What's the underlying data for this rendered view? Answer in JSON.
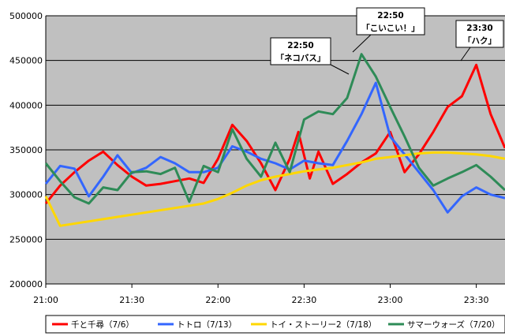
{
  "chart_data": {
    "type": "line",
    "ylim": [
      200000,
      500000
    ],
    "y_ticks": [
      "200000",
      "250000",
      "300000",
      "350000",
      "400000",
      "450000",
      "500000"
    ],
    "y_tick_values": [
      200000,
      250000,
      300000,
      350000,
      400000,
      450000,
      500000
    ],
    "x_ticks": [
      "21:00",
      "21:30",
      "22:00",
      "22:30",
      "23:00",
      "23:30"
    ],
    "x_tick_values": [
      0,
      30,
      60,
      90,
      120,
      150
    ],
    "x_range": [
      0,
      160
    ],
    "grid": "horizontal",
    "background": "#c0c0c0",
    "legend_position": "bottom",
    "series": [
      {
        "name": "千と千尋（7/6）",
        "color": "#ff0000",
        "x": [
          0,
          5,
          10,
          15,
          20,
          25,
          30,
          35,
          40,
          45,
          50,
          55,
          60,
          65,
          70,
          75,
          80,
          85,
          88,
          92,
          95,
          100,
          105,
          110,
          115,
          120,
          125,
          130,
          135,
          140,
          145,
          150,
          155,
          160
        ],
        "y": [
          290000,
          310000,
          325000,
          338000,
          348000,
          333000,
          320000,
          310000,
          312000,
          315000,
          318000,
          313000,
          340000,
          378000,
          360000,
          335000,
          305000,
          340000,
          370000,
          318000,
          348000,
          312000,
          323000,
          336000,
          346000,
          370000,
          325000,
          345000,
          370000,
          398000,
          410000,
          445000,
          390000,
          352000
        ]
      },
      {
        "name": "トトロ（7/13）",
        "color": "#3366ff",
        "x": [
          0,
          5,
          10,
          15,
          20,
          25,
          30,
          35,
          40,
          45,
          50,
          55,
          60,
          65,
          70,
          75,
          80,
          85,
          90,
          95,
          100,
          105,
          110,
          115,
          120,
          125,
          130,
          135,
          140,
          145,
          150,
          155,
          160
        ],
        "y": [
          312000,
          332000,
          329000,
          298000,
          320000,
          344000,
          324000,
          330000,
          342000,
          335000,
          325000,
          325000,
          330000,
          354000,
          348000,
          340000,
          335000,
          328000,
          338000,
          335000,
          333000,
          360000,
          390000,
          425000,
          365000,
          345000,
          325000,
          305000,
          280000,
          298000,
          308000,
          300000,
          296000
        ]
      },
      {
        "name": "トイ・ストーリー2（7/18）",
        "color": "#ffd700",
        "x": [
          0,
          5,
          15,
          25,
          35,
          45,
          55,
          60,
          65,
          70,
          75,
          80,
          85,
          90,
          95,
          100,
          105,
          110,
          115,
          120,
          125,
          130,
          135,
          140,
          145,
          150,
          155,
          160
        ],
        "y": [
          298000,
          265000,
          270000,
          275000,
          280000,
          285000,
          290000,
          295000,
          302000,
          310000,
          316000,
          320000,
          323000,
          326000,
          328000,
          330000,
          333000,
          336000,
          340000,
          342000,
          344000,
          346000,
          347000,
          347000,
          346000,
          345000,
          343000,
          340000
        ]
      },
      {
        "name": "サマーウォーズ（7/20）",
        "color": "#2e8b57",
        "x": [
          0,
          5,
          10,
          15,
          20,
          25,
          30,
          35,
          40,
          45,
          50,
          55,
          60,
          65,
          70,
          75,
          80,
          85,
          90,
          95,
          100,
          105,
          110,
          115,
          120,
          125,
          130,
          135,
          140,
          145,
          150,
          155,
          160
        ],
        "y": [
          335000,
          315000,
          297000,
          290000,
          308000,
          305000,
          325000,
          326000,
          323000,
          330000,
          292000,
          332000,
          325000,
          373000,
          340000,
          320000,
          358000,
          325000,
          384000,
          393000,
          390000,
          408000,
          457000,
          432000,
          398000,
          365000,
          330000,
          310000,
          318000,
          325000,
          333000,
          320000,
          305000
        ]
      }
    ],
    "annotations": [
      {
        "line1": "22:50",
        "line2": "「ネコバス」",
        "x": 110,
        "y": 457000
      },
      {
        "line1": "22:50",
        "line2": "「こいこい！」",
        "x": 110,
        "y": 457000
      },
      {
        "line1": "23:30",
        "line2": "「ハク」",
        "x": 150,
        "y": 445000
      }
    ]
  }
}
